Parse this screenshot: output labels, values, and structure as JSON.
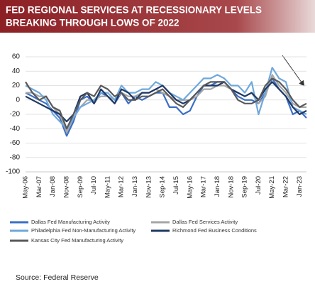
{
  "chart_data": {
    "type": "line",
    "title_lines": [
      "FED REGIONAL SERVICES AT RECESSIONARY LEVELS",
      "BREAKING THROUGH LOWS OF 2022"
    ],
    "source": "Source: Federal Reserve",
    "categories": [
      "May-06",
      null,
      "Mar-07",
      null,
      "Jan-08",
      null,
      "Nov-08",
      null,
      "Sep-09",
      null,
      "Jul-10",
      null,
      "May-11",
      null,
      "Mar-12",
      null,
      "Jan-13",
      null,
      "Nov-13",
      null,
      "Sep-14",
      null,
      "Jul-15",
      null,
      "May-16",
      null,
      "Mar-17",
      null,
      "Jan-18",
      null,
      "Nov-18",
      null,
      "Sep-19",
      null,
      "Jul-20",
      null,
      "May-21",
      null,
      "Mar-22",
      null,
      "Jan-23",
      null
    ],
    "series": [
      {
        "name": "Dallas Fed Manufacturing Activity",
        "color": "#3b6fc6",
        "values": [
          10,
          5,
          0,
          -5,
          -15,
          -25,
          -50,
          -30,
          0,
          5,
          -5,
          10,
          5,
          -5,
          10,
          -5,
          5,
          0,
          5,
          10,
          10,
          -10,
          -10,
          -20,
          -15,
          5,
          20,
          20,
          25,
          25,
          15,
          5,
          0,
          0,
          -5,
          10,
          30,
          15,
          5,
          -20,
          -15,
          -25
        ]
      },
      {
        "name": "Dallas Fed Services Activity",
        "color": "#a6a6a6",
        "values": [
          10,
          10,
          5,
          5,
          -10,
          -20,
          -45,
          -25,
          -10,
          0,
          0,
          5,
          5,
          0,
          10,
          5,
          5,
          10,
          10,
          15,
          10,
          5,
          0,
          0,
          0,
          5,
          15,
          15,
          20,
          20,
          15,
          10,
          5,
          10,
          -5,
          5,
          35,
          20,
          10,
          -5,
          -10,
          -10
        ]
      },
      {
        "name": "Philadelphia Fed Non-Manufacturing Activity",
        "color": "#6fa8dc",
        "values": [
          20,
          15,
          10,
          0,
          -20,
          -30,
          -40,
          -25,
          -10,
          -5,
          0,
          10,
          10,
          0,
          20,
          10,
          10,
          15,
          15,
          25,
          20,
          10,
          5,
          0,
          10,
          20,
          30,
          30,
          35,
          30,
          20,
          20,
          10,
          25,
          -20,
          10,
          45,
          30,
          25,
          -10,
          -15,
          -20
        ]
      },
      {
        "name": "Richmond Fed Business Conditions",
        "color": "#1f3864",
        "values": [
          5,
          0,
          -5,
          -10,
          -15,
          -20,
          -30,
          -20,
          5,
          10,
          -5,
          15,
          5,
          -5,
          15,
          10,
          0,
          10,
          10,
          15,
          20,
          10,
          0,
          -5,
          0,
          10,
          20,
          20,
          20,
          25,
          15,
          10,
          5,
          10,
          0,
          15,
          25,
          15,
          5,
          -10,
          -20,
          -15
        ]
      },
      {
        "name": "Kansas City Fed Manufacturing Activity",
        "color": "#595959",
        "values": [
          25,
          10,
          0,
          5,
          -10,
          -15,
          -40,
          -20,
          0,
          10,
          5,
          20,
          15,
          5,
          10,
          0,
          0,
          5,
          5,
          10,
          15,
          5,
          -5,
          -10,
          0,
          10,
          20,
          25,
          25,
          25,
          15,
          0,
          -5,
          -5,
          0,
          20,
          30,
          25,
          15,
          0,
          -10,
          -5
        ]
      }
    ],
    "ylim": [
      -100,
      60
    ],
    "yticks": [
      -100,
      -80,
      -60,
      -40,
      -20,
      0,
      20,
      40,
      60
    ],
    "grid": true
  }
}
